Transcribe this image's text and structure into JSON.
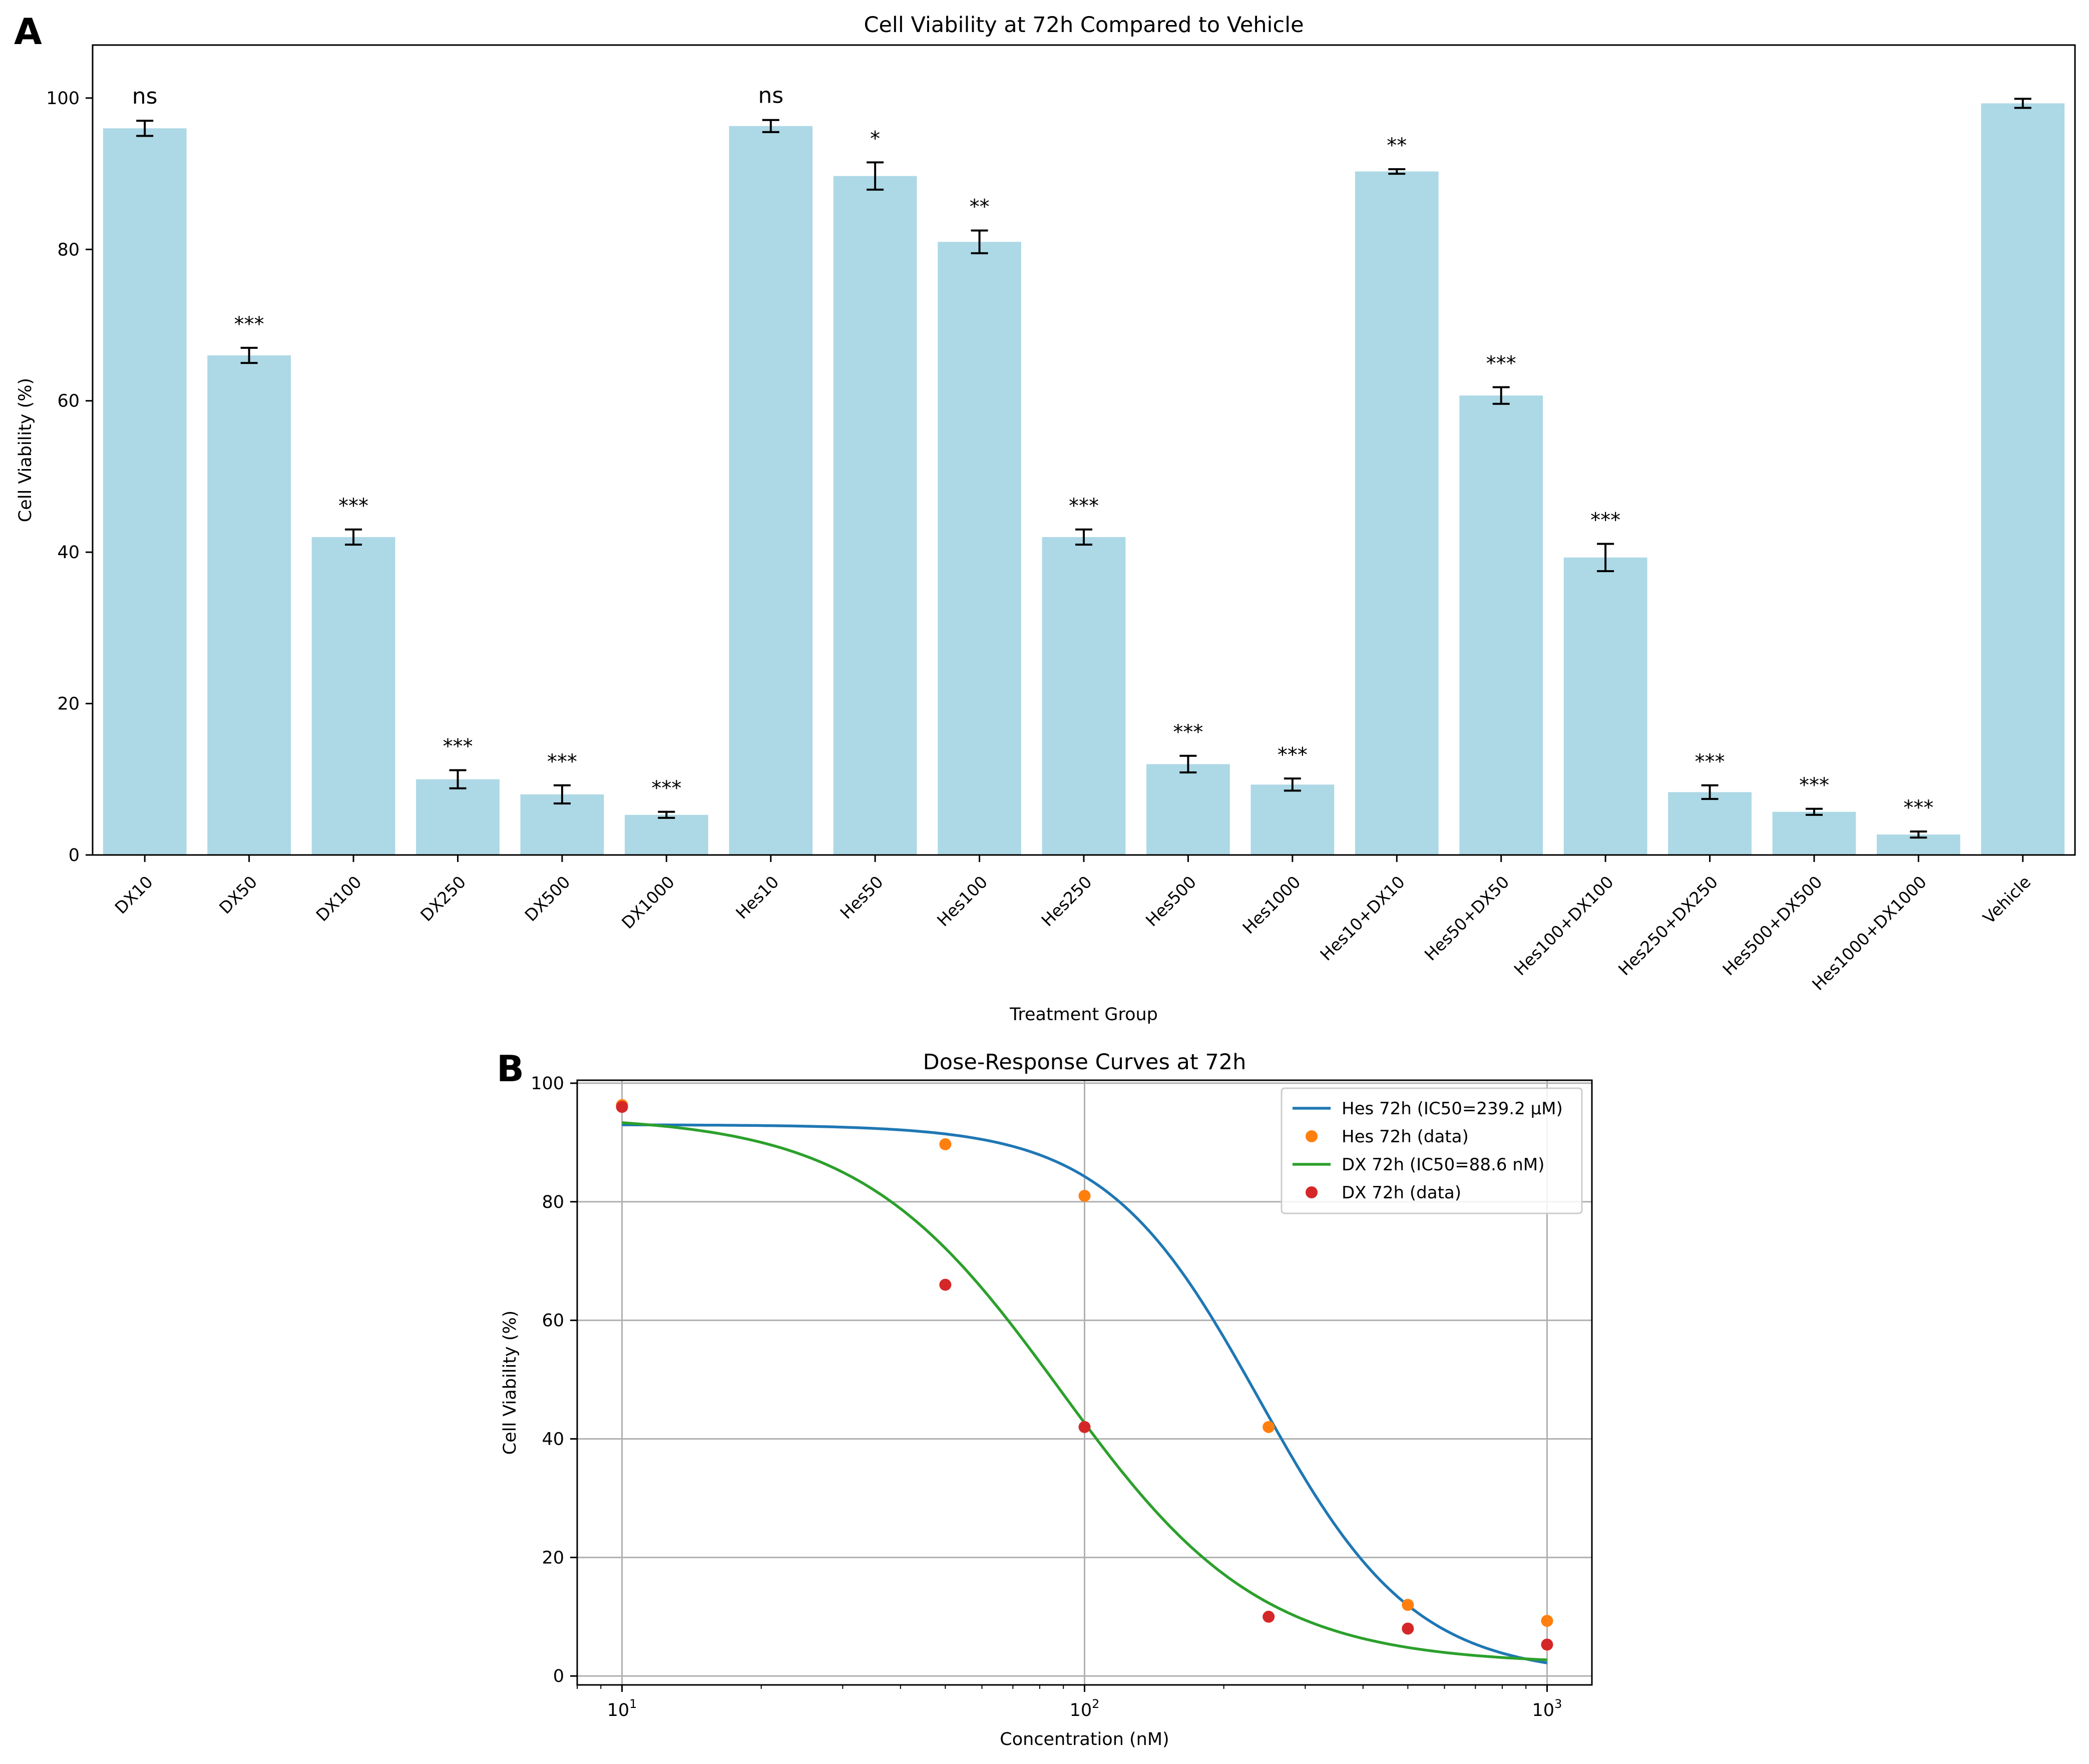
{
  "panels": {
    "a_letter": "A",
    "b_letter": "B"
  },
  "chart_data": [
    {
      "type": "bar",
      "title": "Cell Viability at 72h Compared to Vehicle",
      "xlabel": "Treatment Group",
      "ylabel": "Cell Viability (%)",
      "ylim": [
        0,
        107
      ],
      "yticks": [
        0,
        20,
        40,
        60,
        80,
        100
      ],
      "grid": false,
      "bar_color": "#add8e6",
      "categories": [
        "DX10",
        "DX50",
        "DX100",
        "DX250",
        "DX500",
        "DX1000",
        "Hes10",
        "Hes50",
        "Hes100",
        "Hes250",
        "Hes500",
        "Hes1000",
        "Hes10+DX10",
        "Hes50+DX50",
        "Hes100+DX100",
        "Hes250+DX250",
        "Hes500+DX500",
        "Hes1000+DX1000",
        "Vehicle"
      ],
      "values": [
        96,
        66,
        42,
        10,
        8,
        5.3,
        96.3,
        89.7,
        81,
        42,
        12,
        9.3,
        90.3,
        60.7,
        39.3,
        8.3,
        5.7,
        2.7,
        99.3
      ],
      "errors": [
        1.0,
        1.0,
        1.0,
        1.2,
        1.2,
        0.4,
        0.8,
        1.8,
        1.5,
        1.0,
        1.1,
        0.8,
        0.3,
        1.1,
        1.8,
        0.9,
        0.4,
        0.4,
        0.6
      ],
      "significance": [
        "ns",
        "***",
        "***",
        "***",
        "***",
        "***",
        "ns",
        "*",
        "**",
        "***",
        "***",
        "***",
        "**",
        "***",
        "***",
        "***",
        "***",
        "***",
        ""
      ]
    },
    {
      "type": "line",
      "title": "Dose-Response Curves at 72h",
      "xlabel": "Concentration (nM)",
      "ylabel": "Cell Viability (%)",
      "xscale": "log",
      "xlim": [
        8,
        1250
      ],
      "ylim": [
        -1.5,
        100.5
      ],
      "xticks": [
        10,
        100,
        1000
      ],
      "xtick_labels": [
        {
          "base": "10",
          "exp": "1"
        },
        {
          "base": "10",
          "exp": "2"
        },
        {
          "base": "10",
          "exp": "3"
        }
      ],
      "yticks": [
        0,
        20,
        40,
        60,
        80,
        100
      ],
      "grid": true,
      "legend_position": "top-right",
      "series": [
        {
          "name": "Hes 72h (IC50=239.2 μM)",
          "kind": "curve",
          "color": "#1f77b4",
          "top": 93,
          "bottom": 0,
          "ic50": 239.2,
          "hill": 2.6,
          "x_range": [
            10,
            1000
          ]
        },
        {
          "name": "Hes 72h (data)",
          "kind": "points",
          "color": "#ff7f0e",
          "x": [
            10,
            50,
            100,
            250,
            500,
            1000
          ],
          "y": [
            96.3,
            89.7,
            81,
            42,
            12,
            9.3
          ]
        },
        {
          "name": "DX 72h (IC50=88.6 nM)",
          "kind": "curve",
          "color": "#2ca02c",
          "top": 94.5,
          "bottom": 2,
          "ic50": 88.6,
          "hill": 2.0,
          "x_range": [
            10,
            1000
          ]
        },
        {
          "name": "DX 72h (data)",
          "kind": "points",
          "color": "#d62728",
          "x": [
            10,
            50,
            100,
            250,
            500,
            1000
          ],
          "y": [
            96,
            66,
            42,
            10,
            8,
            5.3
          ]
        }
      ]
    }
  ]
}
